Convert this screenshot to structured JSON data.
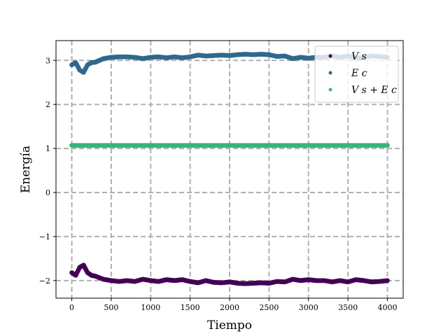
{
  "chart_data": {
    "type": "scatter",
    "xlabel": "Tiempo",
    "ylabel": "Energía",
    "xlim": [
      -200,
      4200
    ],
    "ylim": [
      -2.4,
      3.45
    ],
    "x_ticks": [
      0,
      500,
      1000,
      1500,
      2000,
      2500,
      3000,
      3500,
      4000
    ],
    "y_ticks": [
      -2,
      -1,
      0,
      1,
      2,
      3
    ],
    "y_tick_labels": [
      "−2",
      "−1",
      "0",
      "1",
      "2",
      "3"
    ],
    "grid": true,
    "grid_style": "dashed",
    "legend_position": "top-right",
    "series": [
      {
        "name": "Vs",
        "legend_label": "V s",
        "color": "#440154",
        "x": [
          0,
          50,
          100,
          150,
          200,
          250,
          300,
          400,
          500,
          600,
          700,
          800,
          900,
          1000,
          1100,
          1200,
          1300,
          1400,
          1500,
          1600,
          1700,
          1800,
          1900,
          2000,
          2100,
          2200,
          2300,
          2400,
          2500,
          2600,
          2700,
          2800,
          2900,
          3000,
          3100,
          3200,
          3300,
          3400,
          3500,
          3600,
          3700,
          3800,
          3900,
          4000
        ],
        "y": [
          -1.82,
          -1.88,
          -1.7,
          -1.65,
          -1.82,
          -1.88,
          -1.9,
          -1.97,
          -2.0,
          -2.02,
          -2.0,
          -2.02,
          -1.97,
          -2.0,
          -2.02,
          -1.98,
          -2.0,
          -1.98,
          -2.02,
          -2.05,
          -2.0,
          -2.04,
          -2.05,
          -2.03,
          -2.06,
          -2.07,
          -2.06,
          -2.05,
          -2.06,
          -2.02,
          -2.03,
          -1.97,
          -2.0,
          -1.98,
          -2.0,
          -2.0,
          -2.03,
          -2.0,
          -2.03,
          -1.98,
          -2.0,
          -2.03,
          -2.02,
          -2.0
        ]
      },
      {
        "name": "E_c",
        "legend_label": "E c",
        "color": "#31688e",
        "x": [
          0,
          50,
          100,
          150,
          200,
          250,
          300,
          400,
          500,
          600,
          700,
          800,
          900,
          1000,
          1100,
          1200,
          1300,
          1400,
          1500,
          1600,
          1700,
          1800,
          1900,
          2000,
          2100,
          2200,
          2300,
          2400,
          2500,
          2600,
          2700,
          2800,
          2900,
          3000,
          3100,
          3200,
          3300,
          3400,
          3500,
          3600,
          3700,
          3800,
          3900,
          4000
        ],
        "y": [
          2.9,
          2.95,
          2.78,
          2.73,
          2.9,
          2.95,
          2.96,
          3.04,
          3.07,
          3.08,
          3.08,
          3.07,
          3.04,
          3.07,
          3.08,
          3.06,
          3.08,
          3.06,
          3.08,
          3.12,
          3.1,
          3.11,
          3.12,
          3.11,
          3.13,
          3.14,
          3.13,
          3.14,
          3.13,
          3.09,
          3.1,
          3.04,
          3.07,
          3.05,
          3.07,
          3.07,
          3.1,
          3.07,
          3.1,
          3.05,
          3.07,
          3.1,
          3.09,
          3.07
        ]
      },
      {
        "name": "Vs + E_c",
        "legend_label": "V s + E c",
        "color": "#35b779",
        "x": [
          0,
          4000
        ],
        "y": [
          1.07,
          1.07
        ]
      }
    ]
  }
}
